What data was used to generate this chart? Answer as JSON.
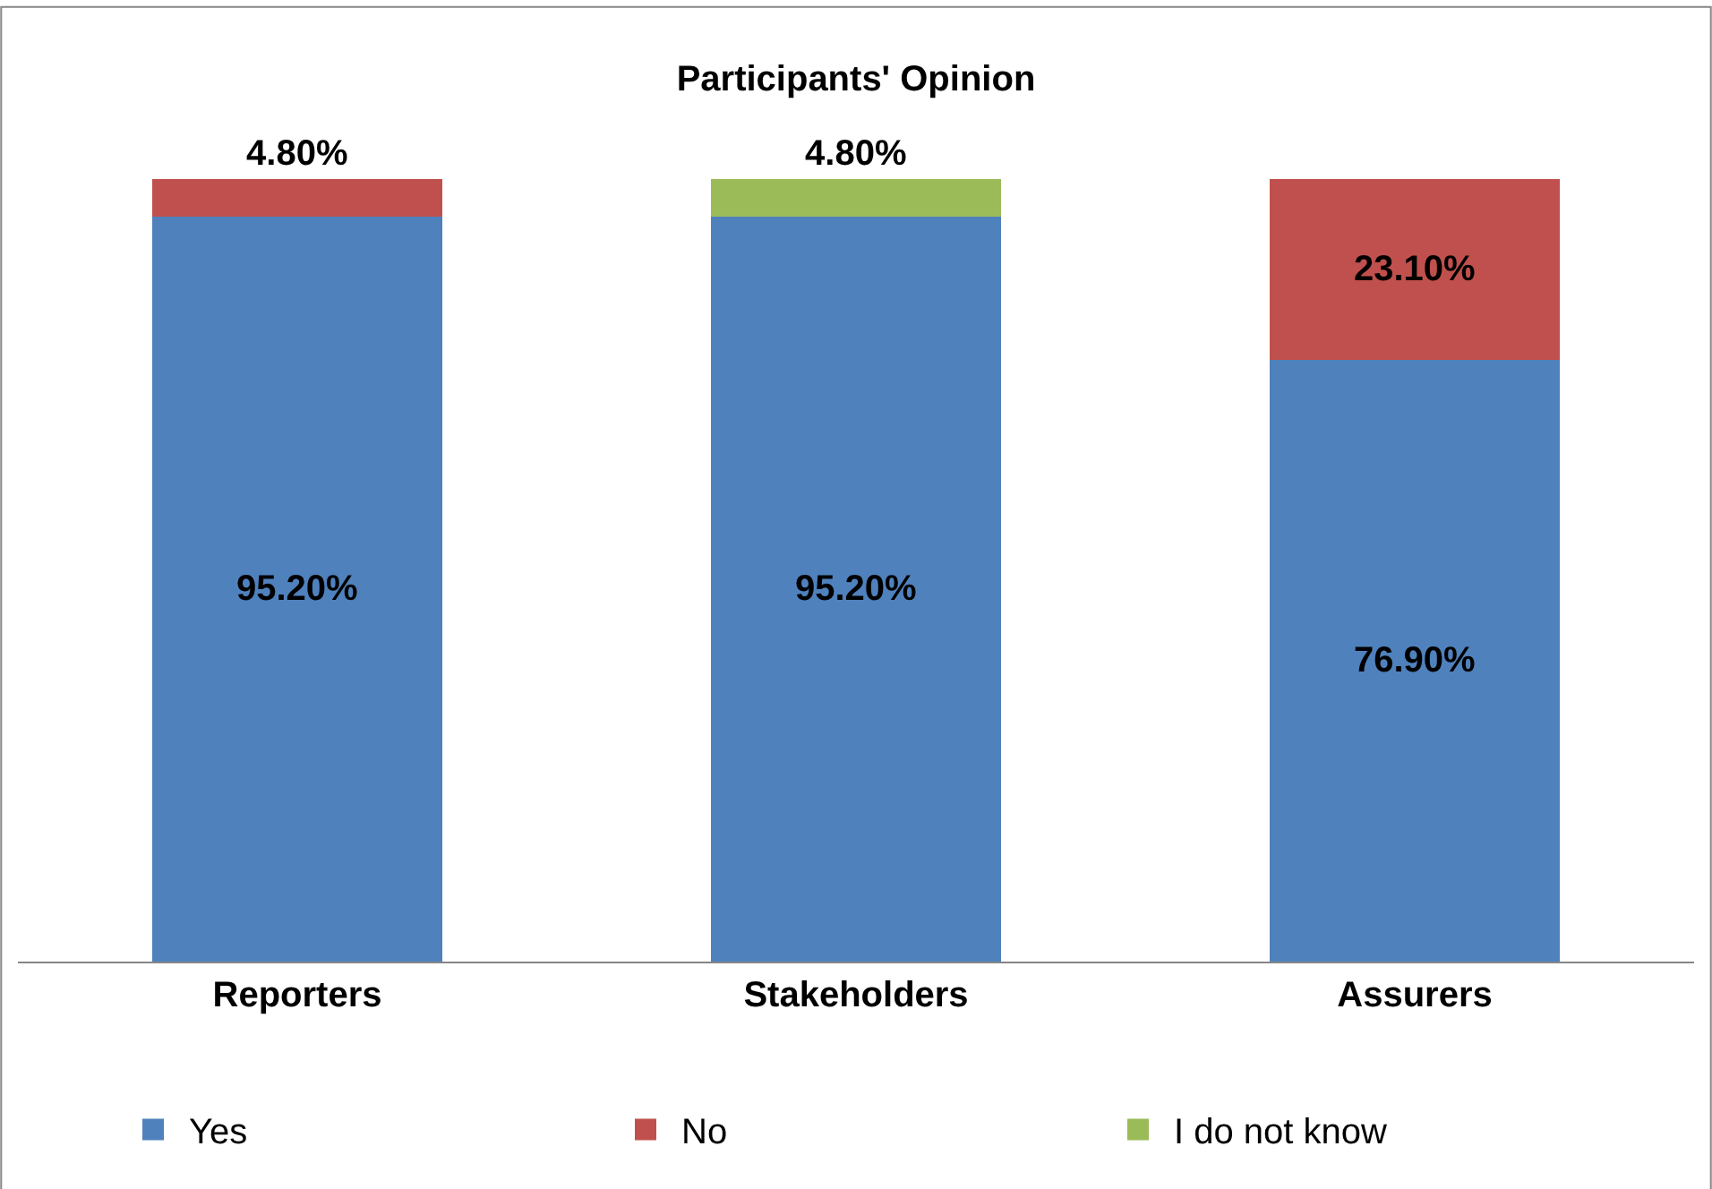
{
  "chart_data": {
    "type": "bar",
    "title": "Participants' Opinion",
    "stacked": true,
    "categories": [
      "Reporters",
      "Stakeholders",
      "Assurers"
    ],
    "series": [
      {
        "name": "Yes",
        "color": "#4f81bd",
        "values": [
          95.2,
          95.2,
          76.9
        ],
        "value_labels": [
          "95.20%",
          "95.20%",
          "76.90%"
        ]
      },
      {
        "name": "No",
        "color": "#c0504d",
        "values": [
          4.8,
          null,
          23.1
        ],
        "value_labels": [
          "4.80%",
          null,
          "23.10%"
        ]
      },
      {
        "name": "I do not know",
        "color": "#9bbb59",
        "values": [
          null,
          4.8,
          null
        ],
        "value_labels": [
          null,
          "4.80%",
          null
        ]
      }
    ],
    "legend": "bottom"
  }
}
